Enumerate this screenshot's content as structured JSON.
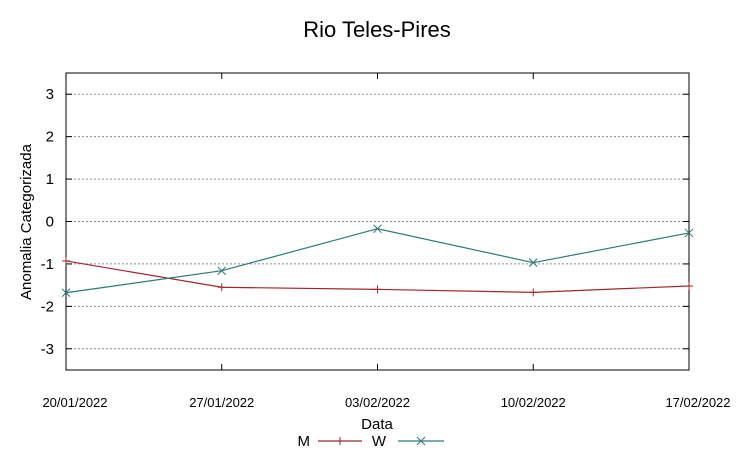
{
  "chart_data": {
    "type": "line",
    "title": "Rio Teles-Pires",
    "xlabel": "Data",
    "ylabel": "Anomalia Categorizada",
    "x": [
      "20/01/2022",
      "27/01/2022",
      "03/02/2022",
      "10/02/2022",
      "17/02/2022"
    ],
    "xlim": [
      "20/01/2022",
      "17/02/2022"
    ],
    "ylim": [
      -3.5,
      3.5
    ],
    "yticks": [
      3,
      2,
      1,
      0,
      -1,
      -2,
      -3
    ],
    "ytick_labels": [
      "3",
      "2",
      "1",
      "0",
      "-1",
      "-2",
      "-3"
    ],
    "grid": "horizontal dotted",
    "legend_position": "bottom-center",
    "series": [
      {
        "name": "M",
        "values": [
          -0.93,
          -1.55,
          -1.6,
          -1.67,
          -1.52
        ],
        "color": "#a0262b",
        "marker": "plus"
      },
      {
        "name": "W",
        "values": [
          -1.68,
          -1.16,
          -0.17,
          -0.97,
          -0.27
        ],
        "color": "#2a7a7a",
        "marker": "cross"
      }
    ]
  }
}
